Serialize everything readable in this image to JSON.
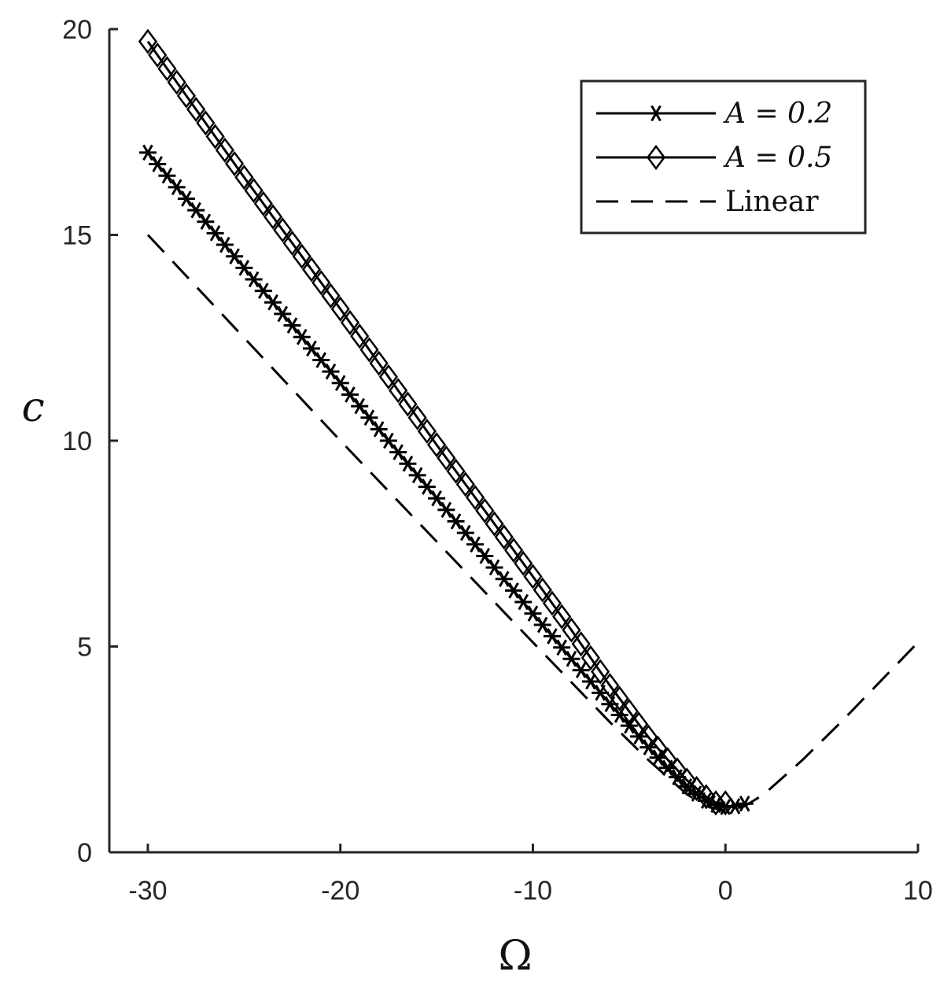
{
  "chart_data": {
    "type": "line",
    "xlabel": "Ω",
    "ylabel": "c",
    "xlim": [
      -32,
      10
    ],
    "ylim": [
      0,
      20
    ],
    "xticks": [
      -30,
      -20,
      -10,
      0,
      10
    ],
    "yticks": [
      0,
      5,
      10,
      15,
      20
    ],
    "xtick_labels": [
      "-30",
      "-20",
      "-10",
      "0",
      "10"
    ],
    "ytick_labels": [
      "0",
      "5",
      "10",
      "15",
      "20"
    ],
    "grid": false,
    "legend_position": "top-right",
    "series": [
      {
        "name": "A = 0.2",
        "legend_text": "A = 0.2",
        "style": "solid",
        "marker": "asterisk",
        "x": [
          -30,
          -25,
          -20,
          -15,
          -10,
          -8,
          -6,
          -4,
          -3,
          -2,
          -1,
          -0.5,
          0,
          0.5,
          1
        ],
        "y": [
          17.0,
          14.2,
          11.4,
          8.6,
          5.8,
          4.7,
          3.6,
          2.55,
          2.05,
          1.6,
          1.25,
          1.15,
          1.1,
          1.12,
          1.18
        ]
      },
      {
        "name": "A = 0.5",
        "legend_text": "A = 0.5",
        "style": "solid",
        "marker": "diamond",
        "x": [
          -30,
          -25,
          -20,
          -15,
          -10,
          -8,
          -6,
          -4,
          -3,
          -2,
          -1,
          -0.5,
          0
        ],
        "y": [
          19.7,
          16.4,
          13.2,
          9.9,
          6.7,
          5.4,
          4.05,
          2.8,
          2.25,
          1.75,
          1.35,
          1.2,
          1.2
        ]
      },
      {
        "name": "Linear",
        "legend_text": "Linear",
        "style": "dashed",
        "marker": "none",
        "x": [
          -30,
          -20,
          -10,
          -6,
          -4,
          -2,
          -1,
          0,
          1,
          2,
          4,
          6,
          10
        ],
        "y": [
          15.0,
          10.0,
          5.1,
          3.16,
          2.24,
          1.41,
          1.12,
          1.0,
          1.12,
          1.41,
          2.24,
          3.16,
          5.1
        ]
      }
    ]
  },
  "colors": {
    "line": "#000000",
    "axis": "#262626",
    "background": "#ffffff"
  }
}
